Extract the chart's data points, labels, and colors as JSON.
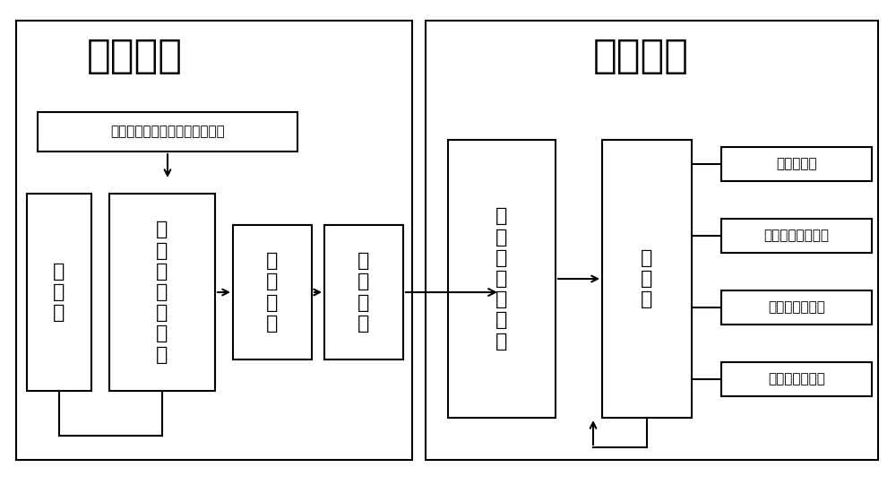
{
  "title_left": "主机系统",
  "title_right": "显示系统",
  "label_box_top": "轴位和角膜散光轴位之间夹角量",
  "box1_label": "成\n像\n仪",
  "box2_label": "模\n拟\n量\n输\n入\n模\n块",
  "box3_label": "计\n算\n模\n块",
  "box4_label": "输\n出\n模\n块",
  "box5_label": "显\n示\n控\n制\n适\n配\n器",
  "box6_label": "显\n示\n器",
  "output1": "残余散光量",
  "output2": "与原散光间夹角量",
  "output3": "轴位旋转示意图",
  "output4": "残余散光轴位图",
  "bg_color": "#ffffff",
  "box_edge_color": "#000000",
  "text_color": "#000000",
  "font_size_title": 32,
  "font_size_box": 16,
  "font_size_info": 11,
  "font_size_output": 11
}
